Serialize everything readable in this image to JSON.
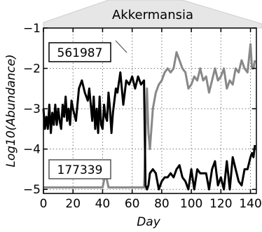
{
  "chart_data": {
    "type": "line",
    "title": "Akkermansia",
    "xlabel": "Day",
    "ylabel": "Log10(Abundance)",
    "xlim": [
      0,
      144
    ],
    "ylim": [
      -5.1,
      -1
    ],
    "xticks": [
      "0",
      "20",
      "40",
      "60",
      "80",
      "100",
      "120",
      "140"
    ],
    "yticks": [
      "−1",
      "−2",
      "−3",
      "−4",
      "−5"
    ],
    "grid": true,
    "series": [
      {
        "name": "561987",
        "color": "#000000",
        "x": [
          0,
          1,
          2,
          3,
          4,
          5,
          6,
          7,
          8,
          9,
          10,
          11,
          12,
          13,
          14,
          15,
          16,
          17,
          18,
          19,
          20,
          22,
          24,
          26,
          28,
          30,
          31,
          32,
          33,
          34,
          35,
          36,
          37,
          38,
          39,
          40,
          41,
          42,
          43,
          44,
          45,
          46,
          47,
          48,
          49,
          50,
          52,
          54,
          56,
          58,
          60,
          62,
          64,
          66,
          68,
          69,
          70,
          71,
          72,
          74,
          76,
          78,
          80,
          82,
          84,
          86,
          88,
          90,
          92,
          94,
          96,
          98,
          100,
          102,
          104,
          106,
          108,
          110,
          112,
          114,
          116,
          118,
          120,
          122,
          124,
          126,
          128,
          130,
          132,
          134,
          136,
          138,
          140,
          141,
          142,
          143
        ],
        "y": [
          -3.0,
          -3.5,
          -3.2,
          -3.5,
          -2.9,
          -3.6,
          -3.1,
          -3.4,
          -2.9,
          -3.4,
          -3.0,
          -3.3,
          -3.5,
          -2.9,
          -3.2,
          -2.7,
          -3.3,
          -3.0,
          -3.4,
          -2.8,
          -3.0,
          -3.3,
          -2.5,
          -2.3,
          -2.6,
          -2.8,
          -2.5,
          -2.9,
          -3.3,
          -2.7,
          -3.5,
          -3.0,
          -3.6,
          -2.7,
          -3.4,
          -3.5,
          -2.9,
          -3.2,
          -3.3,
          -2.6,
          -3.0,
          -3.6,
          -3.1,
          -2.8,
          -2.5,
          -2.6,
          -2.1,
          -2.9,
          -2.3,
          -2.4,
          -2.2,
          -2.5,
          -2.2,
          -2.4,
          -2.3,
          -4.9,
          -5.0,
          -4.9,
          -4.6,
          -4.5,
          -4.6,
          -5.0,
          -4.8,
          -4.7,
          -4.7,
          -4.6,
          -4.7,
          -4.5,
          -4.4,
          -4.7,
          -4.8,
          -5.0,
          -4.5,
          -5.0,
          -4.5,
          -4.6,
          -4.6,
          -4.6,
          -5.0,
          -4.5,
          -4.3,
          -4.9,
          -4.7,
          -5.0,
          -4.3,
          -5.0,
          -4.2,
          -4.5,
          -4.8,
          -4.9,
          -4.5,
          -4.5,
          -4.2,
          -4.1,
          -4.2,
          -3.9
        ]
      },
      {
        "name": "177339",
        "color": "#888888",
        "x": [
          0,
          10,
          20,
          30,
          38,
          40,
          42,
          44,
          50,
          60,
          68,
          70,
          71,
          72,
          74,
          76,
          78,
          80,
          82,
          84,
          86,
          88,
          90,
          92,
          94,
          96,
          98,
          100,
          102,
          104,
          106,
          108,
          110,
          112,
          114,
          116,
          118,
          120,
          122,
          124,
          126,
          128,
          130,
          132,
          134,
          136,
          138,
          140,
          141,
          142,
          143
        ],
        "y": [
          -4.95,
          -4.95,
          -4.95,
          -4.95,
          -4.95,
          -4.95,
          -4.6,
          -4.95,
          -4.95,
          -4.95,
          -4.95,
          -2.5,
          -3.6,
          -4.0,
          -3.0,
          -2.6,
          -2.4,
          -2.3,
          -2.1,
          -2.0,
          -2.1,
          -2.0,
          -1.6,
          -1.8,
          -2.0,
          -2.1,
          -2.5,
          -2.4,
          -2.2,
          -2.3,
          -2.0,
          -2.3,
          -2.2,
          -2.6,
          -2.3,
          -2.0,
          -2.3,
          -2.2,
          -2.0,
          -2.5,
          -2.3,
          -2.4,
          -2.0,
          -2.1,
          -1.8,
          -2.0,
          -2.1,
          -1.4,
          -2.0,
          -2.0,
          -1.8
        ]
      }
    ]
  }
}
